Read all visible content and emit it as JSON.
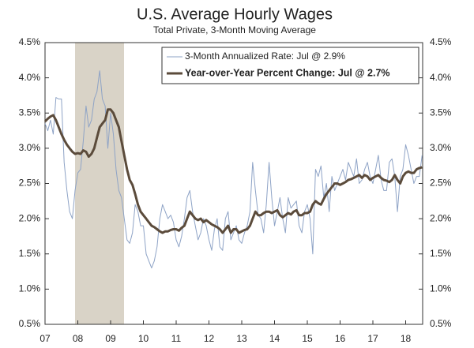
{
  "chart_data": {
    "type": "line",
    "title": "U.S. Average Hourly Wages",
    "subtitle": "Total Private, 3-Month Moving Average",
    "categories": [
      "07",
      null,
      null,
      null,
      null,
      null,
      null,
      null,
      null,
      null,
      null,
      null,
      "08",
      null,
      null,
      null,
      null,
      null,
      null,
      null,
      null,
      null,
      null,
      null,
      "09",
      null,
      null,
      null,
      null,
      null,
      null,
      null,
      null,
      null,
      null,
      null,
      "10",
      null,
      null,
      null,
      null,
      null,
      null,
      null,
      null,
      null,
      null,
      null,
      "11",
      null,
      null,
      null,
      null,
      null,
      null,
      null,
      null,
      null,
      null,
      null,
      "12",
      null,
      null,
      null,
      null,
      null,
      null,
      null,
      null,
      null,
      null,
      null,
      "13",
      null,
      null,
      null,
      null,
      null,
      null,
      null,
      null,
      null,
      null,
      null,
      "14",
      null,
      null,
      null,
      null,
      null,
      null,
      null,
      null,
      null,
      null,
      null,
      "15",
      null,
      null,
      null,
      null,
      null,
      null,
      null,
      null,
      null,
      null,
      null,
      "16",
      null,
      null,
      null,
      null,
      null,
      null,
      null,
      null,
      null,
      null,
      null,
      "17",
      null,
      null,
      null,
      null,
      null,
      null,
      null,
      null,
      null,
      null,
      null,
      "18",
      null,
      null,
      null,
      null,
      null,
      null
    ],
    "series": [
      {
        "name": "3-Month Annualized Rate: Jul @ 2.9%",
        "color": "#8ea3c6",
        "width": 1,
        "values": [
          3.35,
          3.25,
          3.4,
          3.2,
          3.72,
          3.7,
          3.7,
          2.8,
          2.4,
          2.1,
          2.0,
          2.4,
          2.65,
          2.7,
          3.1,
          3.6,
          3.3,
          3.4,
          3.7,
          3.8,
          4.1,
          3.7,
          3.6,
          3.0,
          3.5,
          3.2,
          2.7,
          2.4,
          2.3,
          2.0,
          1.7,
          1.65,
          1.8,
          2.2,
          2.1,
          1.9,
          1.9,
          1.5,
          1.4,
          1.3,
          1.4,
          1.6,
          2.0,
          2.2,
          2.1,
          2.0,
          2.05,
          1.95,
          1.7,
          1.6,
          1.75,
          2.0,
          2.3,
          2.4,
          2.1,
          1.9,
          1.7,
          1.8,
          2.0,
          1.9,
          1.7,
          1.55,
          1.85,
          2.0,
          1.6,
          1.55,
          2.0,
          2.1,
          1.7,
          1.8,
          1.9,
          1.7,
          1.65,
          1.8,
          1.9,
          2.1,
          2.8,
          2.4,
          2.05,
          2.0,
          1.8,
          2.2,
          2.8,
          2.3,
          1.9,
          2.1,
          2.3,
          2.0,
          1.8,
          2.3,
          2.15,
          2.2,
          2.25,
          1.9,
          1.8,
          2.1,
          2.2,
          2.0,
          1.5,
          2.7,
          2.6,
          2.75,
          2.3,
          2.5,
          2.1,
          2.6,
          2.4,
          2.5,
          2.6,
          2.7,
          2.55,
          2.8,
          2.7,
          2.6,
          2.85,
          2.5,
          2.55,
          2.7,
          2.8,
          2.6,
          2.5,
          2.7,
          2.9,
          2.55,
          2.4,
          2.4,
          2.8,
          2.85,
          2.6,
          2.1,
          2.6,
          2.7,
          3.05,
          2.9,
          2.7,
          2.5,
          2.6,
          2.6,
          2.9
        ]
      },
      {
        "name": "Year-over-Year Percent Change: Jul @ 2.7%",
        "color": "#5b4b3b",
        "width": 3,
        "values": [
          3.38,
          3.42,
          3.45,
          3.47,
          3.4,
          3.3,
          3.2,
          3.12,
          3.05,
          3.0,
          2.95,
          2.92,
          2.93,
          2.92,
          2.97,
          2.95,
          2.88,
          2.92,
          3.0,
          3.15,
          3.3,
          3.35,
          3.4,
          3.55,
          3.55,
          3.5,
          3.4,
          3.3,
          3.1,
          2.9,
          2.7,
          2.55,
          2.48,
          2.35,
          2.2,
          2.1,
          2.05,
          2.0,
          1.95,
          1.9,
          1.88,
          1.85,
          1.82,
          1.8,
          1.82,
          1.82,
          1.84,
          1.85,
          1.85,
          1.83,
          1.87,
          1.9,
          2.0,
          2.1,
          2.05,
          2.0,
          1.98,
          2.0,
          1.95,
          1.98,
          1.95,
          1.92,
          1.9,
          1.88,
          1.85,
          1.8,
          1.85,
          1.9,
          1.8,
          1.85,
          1.85,
          1.8,
          1.82,
          1.84,
          1.85,
          1.9,
          2.0,
          2.1,
          2.05,
          2.05,
          2.08,
          2.1,
          2.1,
          2.08,
          2.1,
          2.12,
          2.05,
          2.02,
          2.05,
          2.08,
          2.06,
          2.1,
          2.12,
          2.05,
          2.05,
          2.08,
          2.08,
          2.1,
          2.2,
          2.25,
          2.22,
          2.2,
          2.28,
          2.35,
          2.4,
          2.45,
          2.5,
          2.5,
          2.48,
          2.5,
          2.52,
          2.55,
          2.56,
          2.58,
          2.6,
          2.62,
          2.58,
          2.62,
          2.6,
          2.55,
          2.58,
          2.6,
          2.62,
          2.58,
          2.55,
          2.54,
          2.52,
          2.55,
          2.62,
          2.55,
          2.5,
          2.6,
          2.65,
          2.67,
          2.65,
          2.65,
          2.7,
          2.72,
          2.73
        ]
      }
    ],
    "ylim": [
      0.5,
      4.5
    ],
    "yticks": [
      {
        "value": 0.5,
        "label": "0.5%"
      },
      {
        "value": 1.0,
        "label": "1.0%"
      },
      {
        "value": 1.5,
        "label": "1.5%"
      },
      {
        "value": 2.0,
        "label": "2.0%"
      },
      {
        "value": 2.5,
        "label": "2.5%"
      },
      {
        "value": 3.0,
        "label": "3.0%"
      },
      {
        "value": 3.5,
        "label": "3.5%"
      },
      {
        "value": 4.0,
        "label": "4.0%"
      },
      {
        "value": 4.5,
        "label": "4.5%"
      }
    ],
    "y2lim": [
      0.5,
      4.5
    ],
    "y2ticks": [
      {
        "value": 0.5,
        "label": "0.5%"
      },
      {
        "value": 1.0,
        "label": "1.0%"
      },
      {
        "value": 1.5,
        "label": "1.5%"
      },
      {
        "value": 2.0,
        "label": "2.0%"
      },
      {
        "value": 2.5,
        "label": "2.5%"
      },
      {
        "value": 3.0,
        "label": "3.0%"
      },
      {
        "value": 3.5,
        "label": "3.5%"
      },
      {
        "value": 4.0,
        "label": "4.0%"
      },
      {
        "value": 4.5,
        "label": "4.5%"
      }
    ],
    "grid": false,
    "legend": "top-right"
  }
}
